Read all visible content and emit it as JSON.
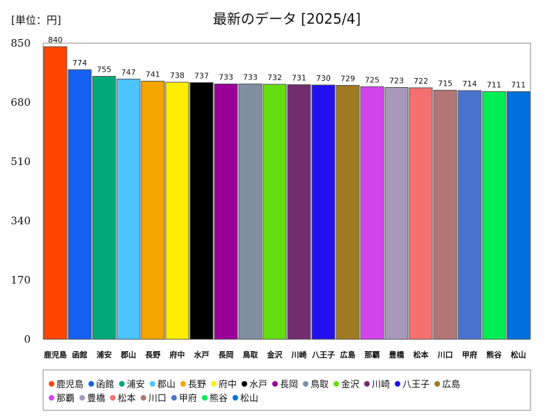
{
  "chart_data": {
    "type": "bar",
    "title": "最新のデータ [2025/4]",
    "unit_label": "[単位：円]",
    "ylim": [
      0,
      850
    ],
    "yticks": [
      0,
      170,
      340,
      510,
      680,
      850
    ],
    "grid": false,
    "legend_position": "bottom",
    "categories": [
      "鹿児島",
      "函館",
      "浦安",
      "郡山",
      "長野",
      "府中",
      "水戸",
      "長岡",
      "鳥取",
      "金沢",
      "川崎",
      "八王子",
      "広島",
      "那覇",
      "豊橋",
      "松本",
      "川口",
      "甲府",
      "熊谷",
      "松山"
    ],
    "values": [
      840,
      774,
      755,
      747,
      741,
      738,
      737,
      733,
      733,
      732,
      731,
      730,
      729,
      725,
      723,
      722,
      715,
      714,
      711,
      711
    ],
    "value_labels": [
      "840",
      "774",
      "755",
      "747",
      "741",
      "738",
      "737",
      "733",
      "733",
      "732",
      "731",
      "730",
      "729",
      "725",
      "723",
      "722",
      "715",
      "714",
      "711",
      "711"
    ],
    "colors": [
      "#ff4500",
      "#1560f0",
      "#00a87a",
      "#4cc4ff",
      "#f5a500",
      "#ffee00",
      "#000000",
      "#990099",
      "#8090a0",
      "#66dd11",
      "#722d6e",
      "#2211ee",
      "#a07a20",
      "#d444ee",
      "#a899bb",
      "#f57070",
      "#b37575",
      "#4a72cf",
      "#00ee55",
      "#0070dd"
    ]
  }
}
